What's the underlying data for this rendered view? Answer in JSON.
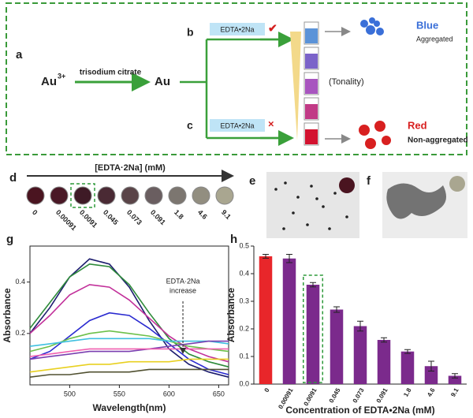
{
  "scheme": {
    "label_a": "a",
    "reactant": "Au",
    "reactant_charge": "3+",
    "reagent": "trisodium citrate",
    "product": "Au",
    "label_b": "b",
    "label_c": "c",
    "reagent_b": "EDTA•2Na",
    "reagent_c": "EDTA•2Na",
    "mark_b": "✔",
    "mark_c": "×",
    "tonality": "(Tonality)",
    "blue": "Blue",
    "aggregated": "Aggregated",
    "red": "Red",
    "non_aggregated": "Non-aggregated",
    "tube_colors": [
      "#5b93d8",
      "#7b63c9",
      "#a855bf",
      "#c13a86",
      "#d3122f"
    ]
  },
  "panel_d": {
    "label": "d",
    "axis_title": "[EDTA·2Na] (mM)",
    "samples": [
      "0",
      "0.00091",
      "0.0091",
      "0.045",
      "0.073",
      "0.091",
      "1.8",
      "4.6",
      "9.1"
    ],
    "colors": [
      "#4a1420",
      "#4a1826",
      "#3e1a26",
      "#4a2a34",
      "#5a4448",
      "#6a5e60",
      "#7c7670",
      "#928e80",
      "#a9a690"
    ],
    "highlight_index": 2
  },
  "panel_e": {
    "label": "e"
  },
  "panel_f": {
    "label": "f"
  },
  "chart_data": [
    {
      "type": "line",
      "panel": "g",
      "xlabel": "Wavelength(nm)",
      "ylabel": "Absorbance",
      "annotation": [
        "EDTA·2Na",
        "increase"
      ],
      "x": [
        460,
        480,
        500,
        520,
        540,
        560,
        580,
        600,
        620,
        640,
        660
      ],
      "xlim": [
        460,
        660
      ],
      "ylim": [
        0,
        0.54
      ],
      "xticks": [
        500,
        550,
        600,
        650
      ],
      "yticks": [
        0.2,
        0.4
      ],
      "series": [
        {
          "color": "#1d1d6e",
          "values": [
            0.2,
            0.3,
            0.42,
            0.49,
            0.47,
            0.38,
            0.25,
            0.14,
            0.08,
            0.05,
            0.03
          ]
        },
        {
          "color": "#2e8b3a",
          "values": [
            0.22,
            0.32,
            0.42,
            0.47,
            0.46,
            0.39,
            0.28,
            0.18,
            0.12,
            0.09,
            0.07
          ]
        },
        {
          "color": "#c2309a",
          "values": [
            0.2,
            0.27,
            0.35,
            0.39,
            0.38,
            0.33,
            0.26,
            0.19,
            0.14,
            0.11,
            0.09
          ]
        },
        {
          "color": "#2a2ad0",
          "values": [
            0.1,
            0.13,
            0.19,
            0.25,
            0.28,
            0.27,
            0.22,
            0.16,
            0.1,
            0.06,
            0.04
          ]
        },
        {
          "color": "#6cc04a",
          "values": [
            0.13,
            0.15,
            0.18,
            0.2,
            0.21,
            0.2,
            0.19,
            0.17,
            0.15,
            0.14,
            0.13
          ]
        },
        {
          "color": "#40c0e0",
          "values": [
            0.15,
            0.16,
            0.17,
            0.18,
            0.18,
            0.18,
            0.18,
            0.17,
            0.17,
            0.17,
            0.16
          ]
        },
        {
          "color": "#7a3fb0",
          "values": [
            0.1,
            0.11,
            0.12,
            0.13,
            0.13,
            0.13,
            0.14,
            0.15,
            0.16,
            0.17,
            0.17
          ]
        },
        {
          "color": "#f060b0",
          "values": [
            0.11,
            0.12,
            0.13,
            0.14,
            0.14,
            0.14,
            0.14,
            0.14,
            0.14,
            0.14,
            0.14
          ]
        },
        {
          "color": "#e8d020",
          "values": [
            0.05,
            0.06,
            0.07,
            0.08,
            0.08,
            0.09,
            0.09,
            0.09,
            0.1,
            0.1,
            0.1
          ]
        },
        {
          "color": "#505030",
          "values": [
            0.03,
            0.04,
            0.04,
            0.05,
            0.05,
            0.05,
            0.06,
            0.06,
            0.06,
            0.06,
            0.06
          ]
        }
      ]
    },
    {
      "type": "bar",
      "panel": "h",
      "xlabel": "Concentration of EDTA•2Na (mM)",
      "ylabel": "Absorbance",
      "categories": [
        "0",
        "0.00091",
        "0.0091",
        "0.045",
        "0.073",
        "0.091",
        "1.8",
        "4.6",
        "9.1"
      ],
      "values": [
        0.463,
        0.455,
        0.36,
        0.27,
        0.21,
        0.16,
        0.118,
        0.065,
        0.03
      ],
      "errors": [
        0.007,
        0.015,
        0.008,
        0.01,
        0.018,
        0.008,
        0.007,
        0.018,
        0.008
      ],
      "colors": [
        "#e8262a",
        "#7b2a8c",
        "#7b2a8c",
        "#7b2a8c",
        "#7b2a8c",
        "#7b2a8c",
        "#7b2a8c",
        "#7b2a8c",
        "#7b2a8c"
      ],
      "ylim": [
        0,
        0.5
      ],
      "yticks": [
        {
          "value": 0,
          "label": "0.0"
        },
        0.1,
        0.2,
        0.3,
        0.4,
        0.5
      ],
      "highlight_index": 2
    }
  ]
}
